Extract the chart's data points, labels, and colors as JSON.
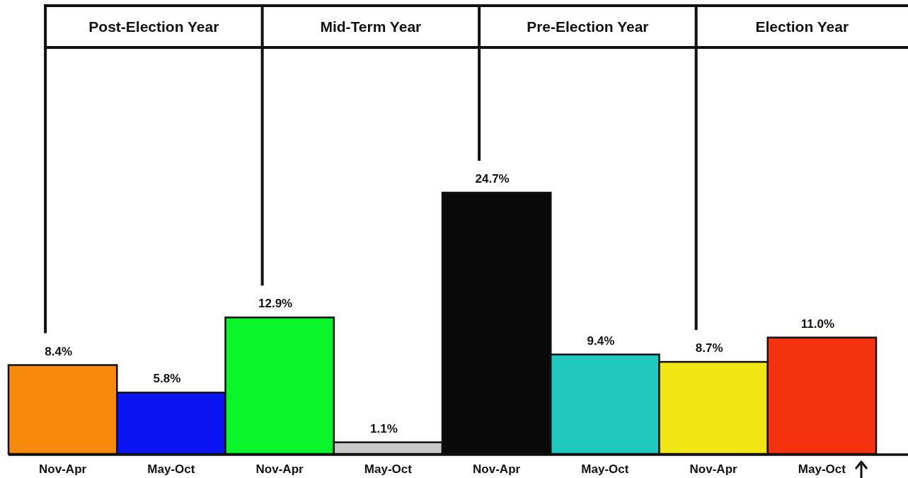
{
  "chart_data": {
    "type": "bar",
    "categories": [
      "Nov-Apr",
      "May-Oct",
      "Nov-Apr",
      "May-Oct",
      "Nov-Apr",
      "May-Oct",
      "Nov-Apr",
      "May-Oct"
    ],
    "values": [
      8.4,
      5.8,
      12.9,
      1.1,
      24.7,
      9.4,
      8.7,
      11.0
    ],
    "colors": [
      "#f7890c",
      "#0a14f0",
      "#0af52a",
      "#c8c8c8",
      "#0a0a0a",
      "#20c8be",
      "#f0e614",
      "#f5320f"
    ],
    "value_labels": [
      "8.4%",
      "5.8%",
      "12.9%",
      "1.1%",
      "24.7%",
      "9.4%",
      "8.7%",
      "11.0%"
    ],
    "annotations": [
      "Post-Election Year",
      "Mid-Term Year",
      "Pre-Election Year",
      "Election Year"
    ]
  }
}
